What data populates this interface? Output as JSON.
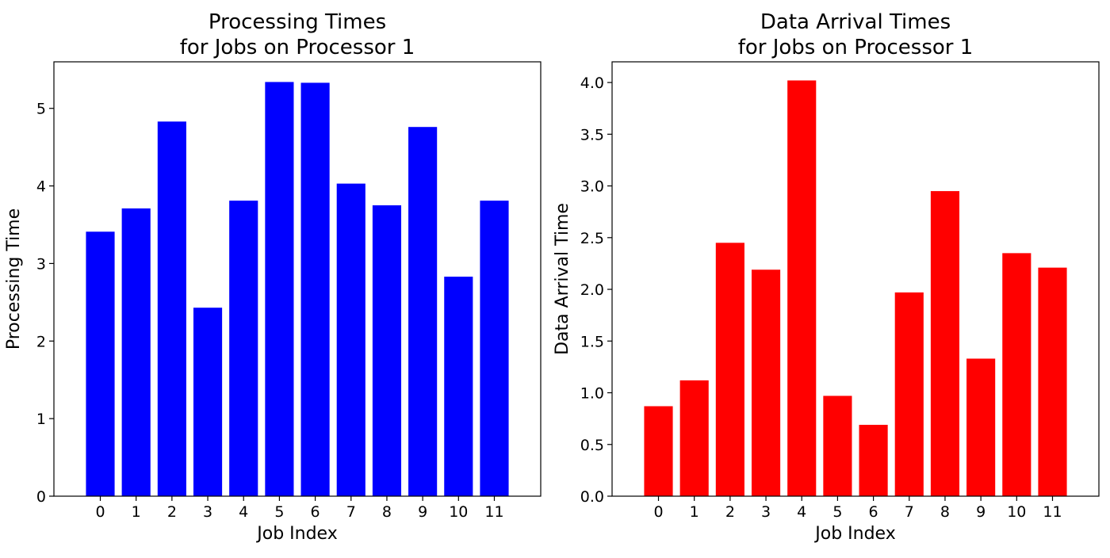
{
  "chart_data": [
    {
      "type": "bar",
      "title": "Processing Times\nfor Jobs on Processor 1",
      "xlabel": "Job Index",
      "ylabel": "Processing Time",
      "categories": [
        "0",
        "1",
        "2",
        "3",
        "4",
        "5",
        "6",
        "7",
        "8",
        "9",
        "10",
        "11"
      ],
      "values": [
        3.41,
        3.71,
        4.83,
        2.43,
        3.81,
        5.34,
        5.33,
        4.03,
        3.75,
        4.76,
        2.83,
        3.81
      ],
      "ylim": [
        0,
        5.6
      ],
      "yticks": [
        0,
        1,
        2,
        3,
        4,
        5
      ],
      "ytick_labels": [
        "0",
        "1",
        "2",
        "3",
        "4",
        "5"
      ],
      "color": "#0000ff",
      "grid": false
    },
    {
      "type": "bar",
      "title": "Data Arrival Times\nfor Jobs on Processor 1",
      "xlabel": "Job Index",
      "ylabel": "Data Arrival Time",
      "categories": [
        "0",
        "1",
        "2",
        "3",
        "4",
        "5",
        "6",
        "7",
        "8",
        "9",
        "10",
        "11"
      ],
      "values": [
        0.87,
        1.12,
        2.45,
        2.19,
        4.02,
        0.97,
        0.69,
        1.97,
        2.95,
        1.33,
        2.35,
        2.21
      ],
      "ylim": [
        0,
        4.2
      ],
      "yticks": [
        0,
        0.5,
        1.0,
        1.5,
        2.0,
        2.5,
        3.0,
        3.5,
        4.0
      ],
      "ytick_labels": [
        "0.0",
        "0.5",
        "1.0",
        "1.5",
        "2.0",
        "2.5",
        "3.0",
        "3.5",
        "4.0"
      ],
      "color": "#ff0000",
      "grid": false
    }
  ]
}
